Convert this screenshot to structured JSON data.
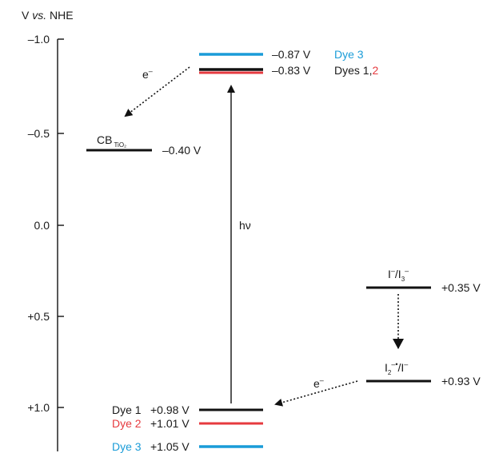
{
  "axis": {
    "title_pre": "V",
    "title_italic": "vs.",
    "title_post": "NHE",
    "ticks": [
      "–1.0",
      "–0.5",
      "0.0",
      "+0.5",
      "+1.0"
    ]
  },
  "levels": {
    "dye3_excited": {
      "value": "–0.87 V",
      "name": "Dye 3"
    },
    "dyes12_excited": {
      "value": "–0.83 V",
      "name_black": "Dyes 1,",
      "name_red": "2"
    },
    "cb_tio2": {
      "label": "CB",
      "sub": "TiO₂",
      "value": "–0.40 V"
    },
    "iodide": {
      "label_a": "I",
      "sup_a": "–",
      "label_b": "/I",
      "sub_b": "3",
      "sup_b": "–",
      "value": "+0.35 V"
    },
    "diiodide": {
      "label_a": "I",
      "sub_a": "2",
      "sup_a": "–•",
      "label_b": "/I",
      "sup_b": "–",
      "value": "+0.93 V"
    },
    "dye1_ground": {
      "name": "Dye 1",
      "value": "+0.98 V"
    },
    "dye2_ground": {
      "name": "Dye 2",
      "value": "+1.01 V"
    },
    "dye3_ground": {
      "name": "Dye 3",
      "value": "+1.05 V"
    }
  },
  "arrows": {
    "injection": {
      "label": "e",
      "sup": "–"
    },
    "excitation": {
      "label": "hν"
    },
    "regeneration": {
      "label": "e",
      "sup": "–"
    }
  },
  "colors": {
    "black": "#111111",
    "red": "#e63a3f",
    "blue": "#1a9cd8"
  }
}
